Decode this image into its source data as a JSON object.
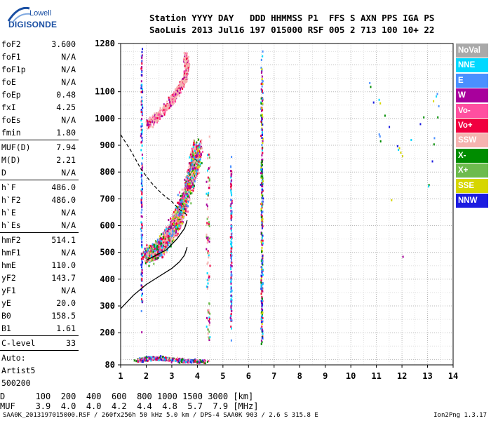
{
  "logo": {
    "line1": "Lowell",
    "line2": "DIGISONDE"
  },
  "header": {
    "line1": "Station YYYY DAY   DDD HHMMSS P1  FFS S AXN PPS IGA PS",
    "line2": "SaoLuis 2013 Jul16 197 015000 RSF 005 2 713 100 10+ 22"
  },
  "params": [
    {
      "label": "foF2",
      "value": "3.600"
    },
    {
      "label": "foF1",
      "value": "N/A"
    },
    {
      "label": "foF1p",
      "value": "N/A"
    },
    {
      "label": "foE",
      "value": "N/A"
    },
    {
      "label": "foEp",
      "value": "0.48"
    },
    {
      "label": "fxI",
      "value": "4.25"
    },
    {
      "label": "foEs",
      "value": "N/A"
    },
    {
      "label": "fmin",
      "value": "1.80"
    },
    {
      "sep": true
    },
    {
      "label": "MUF(D)",
      "value": "7.94"
    },
    {
      "label": "M(D)",
      "value": "2.21"
    },
    {
      "label": "D",
      "value": "N/A"
    },
    {
      "sep": true
    },
    {
      "label": "h`F",
      "value": "486.0"
    },
    {
      "label": "h`F2",
      "value": "486.0"
    },
    {
      "label": "h`E",
      "value": "N/A"
    },
    {
      "label": "h`Es",
      "value": "N/A"
    },
    {
      "sep": true
    },
    {
      "label": "hmF2",
      "value": "514.1"
    },
    {
      "label": "hmF1",
      "value": "N/A"
    },
    {
      "label": "hmE",
      "value": "110.0"
    },
    {
      "label": "yF2",
      "value": "143.7"
    },
    {
      "label": "yF1",
      "value": "N/A"
    },
    {
      "label": "yE",
      "value": "20.0"
    },
    {
      "label": "B0",
      "value": "158.5"
    },
    {
      "label": "B1",
      "value": "1.61"
    },
    {
      "sep": true
    },
    {
      "label": "C-level",
      "value": "33"
    },
    {
      "sep": true
    },
    {
      "text": "Auto:"
    },
    {
      "text": "Artist5"
    },
    {
      "text": "500200"
    }
  ],
  "legend": [
    {
      "label": "NoVal",
      "color": "#a9a9a9"
    },
    {
      "label": "NNE",
      "color": "#00d8ff"
    },
    {
      "label": "E",
      "color": "#4a90ff"
    },
    {
      "label": "W",
      "color": "#a8009c"
    },
    {
      "label": "Vo-",
      "color": "#ff4fa0"
    },
    {
      "label": "Vo+",
      "color": "#f00040"
    },
    {
      "label": "SSW",
      "color": "#f5b3b0"
    },
    {
      "label": "X-",
      "color": "#008c00"
    },
    {
      "label": "X+",
      "color": "#6dbb4d"
    },
    {
      "label": "SSE",
      "color": "#d6d600"
    },
    {
      "label": "NNW",
      "color": "#1c1ce0"
    }
  ],
  "bottom": {
    "line1": "D      100  200  400  600  800 1000 1500 3000 [km]",
    "line2": "MUF    3.9  4.0  4.0  4.2  4.4  4.8  5.7  7.9 [MHz]"
  },
  "footer": {
    "left": "SAA0K_2013197015000.RSF / 260fx256h 50 kHz 5.0 km / DPS-4 SAA0K 903 / 2.6 S 315.8 E",
    "right": "Ion2Png 1.3.17"
  },
  "chart_data": {
    "type": "scatter",
    "xlim": [
      1,
      14
    ],
    "ylim": [
      80,
      1280
    ],
    "x_ticks": [
      "1",
      "2",
      "3",
      "4",
      "5",
      "6",
      "7",
      "8",
      "9",
      "10",
      "11",
      "12",
      "13",
      "14"
    ],
    "y_ticks": [
      "80",
      "200",
      "300",
      "400",
      "500",
      "600",
      "700",
      "800",
      "900",
      "1000",
      "1100",
      "1280"
    ],
    "grid": true,
    "clusters": [
      {
        "type": "F",
        "points": [
          [
            2.0,
            490
          ],
          [
            2.2,
            500
          ],
          [
            2.4,
            510
          ],
          [
            2.6,
            530
          ],
          [
            2.8,
            560
          ],
          [
            3.0,
            590
          ],
          [
            3.2,
            630
          ],
          [
            3.4,
            680
          ],
          [
            3.6,
            740
          ],
          [
            3.8,
            800
          ],
          [
            3.9,
            860
          ],
          [
            4.0,
            900
          ]
        ],
        "jitter": [
          0.28,
          40
        ],
        "count": 2600,
        "colors": [
          "SSW",
          "SSW",
          "SSW",
          "Vo+",
          "Vo+",
          "W",
          "X+",
          "X-",
          "SSE",
          "E",
          "NNE",
          "Vo-"
        ]
      },
      {
        "type": "F",
        "points": [
          [
            2.0,
            980
          ],
          [
            2.3,
            1000
          ],
          [
            2.6,
            1030
          ],
          [
            2.9,
            1060
          ],
          [
            3.1,
            1090
          ],
          [
            3.3,
            1120
          ],
          [
            3.5,
            1150
          ],
          [
            3.6,
            1200
          ],
          [
            3.5,
            1240
          ]
        ],
        "jitter": [
          0.12,
          25
        ],
        "count": 650,
        "colors": [
          "SSW",
          "SSW",
          "SSW",
          "SSW",
          "Vo-",
          "W",
          "Vo+"
        ]
      },
      {
        "type": "F",
        "points": [
          [
            1.7,
            100
          ],
          [
            2.2,
            110
          ],
          [
            2.8,
            105
          ],
          [
            3.5,
            98
          ],
          [
            4.2,
            95
          ]
        ],
        "jitter": [
          0.35,
          10
        ],
        "count": 480,
        "colors": [
          "Vo+",
          "X-",
          "W",
          "NNW",
          "SSW",
          "Vo-",
          "NNE",
          "E"
        ]
      },
      {
        "type": "F",
        "points": [
          [
            6.5,
            200
          ],
          [
            6.5,
            450
          ],
          [
            6.5,
            700
          ],
          [
            6.5,
            950
          ],
          [
            6.5,
            1200
          ]
        ],
        "jitter": [
          0.06,
          120
        ],
        "count": 300,
        "colors": [
          "NNE",
          "E",
          "W",
          "Vo+",
          "X-",
          "SSE",
          "NNW"
        ]
      },
      {
        "type": "F",
        "points": [
          [
            5.3,
            200
          ],
          [
            5.3,
            400
          ],
          [
            5.3,
            600
          ],
          [
            5.3,
            800
          ]
        ],
        "jitter": [
          0.04,
          120
        ],
        "count": 140,
        "colors": [
          "NNE",
          "E",
          "W",
          "Vo+"
        ]
      },
      {
        "type": "F",
        "points": [
          [
            1.8,
            300
          ],
          [
            1.8,
            600
          ],
          [
            1.8,
            900
          ],
          [
            1.8,
            1250
          ]
        ],
        "jitter": [
          0.04,
          140
        ],
        "count": 170,
        "colors": [
          "NNW",
          "E",
          "W",
          "Vo+",
          "NNE"
        ]
      },
      {
        "type": "F",
        "points": [
          [
            4.4,
            200
          ],
          [
            4.4,
            500
          ],
          [
            4.4,
            900
          ]
        ],
        "jitter": [
          0.1,
          160
        ],
        "count": 90,
        "colors": [
          "NNE",
          "Vo+",
          "SSW",
          "W",
          "X+"
        ]
      },
      {
        "type": "F",
        "points": [
          [
            12.6,
            400
          ],
          [
            13.5,
            1120
          ],
          [
            12.0,
            860
          ],
          [
            10.7,
            1150
          ],
          [
            12.2,
            390
          ]
        ],
        "jitter": [
          0.05,
          15
        ],
        "count": 30,
        "colors": [
          "NNE",
          "E",
          "SSE",
          "X-",
          "NNW",
          "W"
        ]
      }
    ],
    "profile_curve": [
      [
        1,
        290
      ],
      [
        1.5,
        340
      ],
      [
        2.0,
        380
      ],
      [
        2.5,
        410
      ],
      [
        3.0,
        440
      ],
      [
        3.3,
        465
      ],
      [
        3.5,
        490
      ],
      [
        3.6,
        520
      ]
    ],
    "trace_curve": [
      [
        2.0,
        470
      ],
      [
        2.4,
        490
      ],
      [
        2.8,
        510
      ],
      [
        3.2,
        550
      ],
      [
        3.5,
        590
      ],
      [
        3.6,
        620
      ]
    ],
    "dashed_curve": [
      [
        1,
        940
      ],
      [
        1.4,
        880
      ],
      [
        1.8,
        810
      ],
      [
        2.2,
        760
      ],
      [
        2.6,
        720
      ],
      [
        3.0,
        690
      ],
      [
        3.3,
        660
      ],
      [
        3.6,
        640
      ]
    ]
  }
}
